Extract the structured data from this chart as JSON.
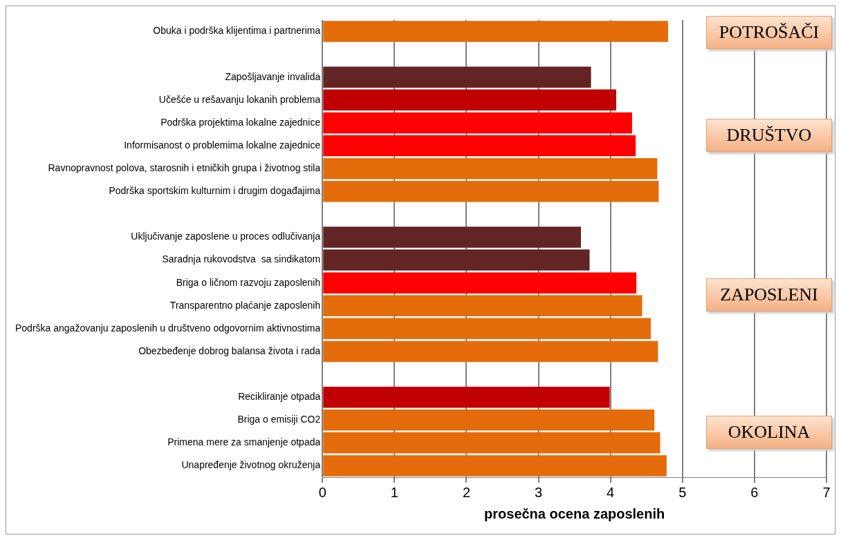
{
  "chart_data": {
    "type": "bar",
    "orientation": "horizontal",
    "xlabel": "prosečna ocena zaposlenih",
    "categories": [
      "Obuka i podrška klijentima i partnerima",
      null,
      "Zapošljavanje invalida",
      "Učešće u rešavanju lokanih problema",
      "Podrška projektima lokalne zajednice",
      "Informisanost o problemima lokalne zajednice",
      "Ravnopravnost polova, starosnih i etničkih grupa i životnog stila",
      "Podrška sportskim kulturnim i drugim događajima",
      null,
      "Uključivanje zaposlene u proces odlučivanja",
      "Saradnja rukovodstva  sa sindikatom",
      "Briga o ličnom razvoju zaposlenih",
      "Transparentno plaćanje zaposlenih",
      "Podrška angažovanju zaposlenih u društveno odgovornim aktivnostima",
      "Obezbeđenje dobrog balansa života i rada",
      null,
      "Recikliranje otpada",
      "Briga o emisiji CO2",
      "Primena mere za smanjenje otpada",
      "Unapređenje životnog okruženja"
    ],
    "values": [
      4.8,
      null,
      3.73,
      4.08,
      4.3,
      4.35,
      4.65,
      4.67,
      null,
      3.59,
      3.71,
      4.36,
      4.44,
      4.56,
      4.66,
      null,
      3.99,
      4.61,
      4.69,
      4.78
    ],
    "colors": [
      "#e46c0a",
      null,
      "#632523",
      "#c00000",
      "#ff0000",
      "#ff0000",
      "#e46c0a",
      "#e46c0a",
      null,
      "#632523",
      "#632523",
      "#ff0000",
      "#e46c0a",
      "#e46c0a",
      "#e46c0a",
      null,
      "#c00000",
      "#e46c0a",
      "#e46c0a",
      "#e46c0a"
    ],
    "xlim": [
      0,
      7
    ],
    "xticks": [
      0,
      1,
      2,
      3,
      4,
      5,
      6,
      7
    ],
    "grid": "x",
    "legend": false,
    "annotations": [
      "POTROŠAČI",
      "DRUŠTVO",
      "ZAPOSLENI",
      "OKOLINA"
    ]
  }
}
